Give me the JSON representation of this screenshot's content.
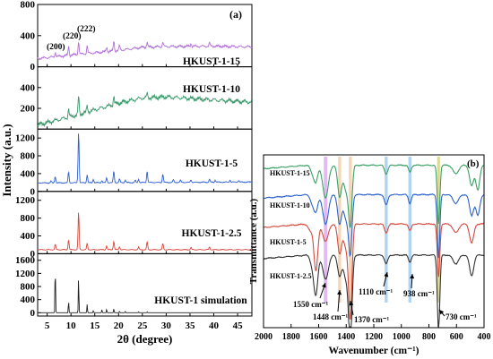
{
  "colors": {
    "hk15": "#b173d6",
    "hk10": "#3a9a6b",
    "hk5": "#2f5fd0",
    "hk25": "#d7473c",
    "sim": "#222222",
    "ft15": "#3aa063",
    "ft10": "#2c63c9",
    "ft5": "#d24a3e",
    "ft25": "#333333",
    "band_violet": "#d9a8f0",
    "band_orange": "#f3caa0",
    "band_blue": "#9cc9ef",
    "band_olive": "#d3d07a"
  },
  "chart_data": [
    {
      "type": "line",
      "panel_label": "(a)",
      "xlabel": "2θ (degree)",
      "ylabel": "Intensity (a.u.)",
      "xlim": [
        3,
        48
      ],
      "xticks": [
        5,
        10,
        15,
        20,
        25,
        30,
        35,
        40,
        45
      ],
      "peak_labels": [
        "(200)",
        "(220)",
        "(222)"
      ],
      "subplots": [
        {
          "name": "HKUST-1-15",
          "ylim": [
            0,
            800
          ],
          "yticks": [
            0,
            400,
            800
          ],
          "baseline": [
            [
              3,
              105
            ],
            [
              10,
              150
            ],
            [
              20,
              210
            ],
            [
              25,
              250
            ],
            [
              30,
              260
            ],
            [
              40,
              265
            ],
            [
              48,
              255
            ]
          ],
          "peaks": [
            [
              6.7,
              60
            ],
            [
              9.5,
              120
            ],
            [
              11.6,
              170
            ],
            [
              13.4,
              100
            ],
            [
              17.5,
              60
            ],
            [
              19.0,
              130
            ],
            [
              20.2,
              60
            ],
            [
              26.0,
              70
            ],
            [
              29.3,
              60
            ],
            [
              35.2,
              40
            ],
            [
              39.1,
              40
            ]
          ]
        },
        {
          "name": "HKUST-1-10",
          "ylim": [
            0,
            600
          ],
          "yticks": [
            200,
            400
          ],
          "baseline": [
            [
              3,
              40
            ],
            [
              10,
              120
            ],
            [
              20,
              250
            ],
            [
              25,
              300
            ],
            [
              30,
              310
            ],
            [
              40,
              280
            ],
            [
              48,
              260
            ]
          ],
          "peaks": [
            [
              9.5,
              80
            ],
            [
              11.6,
              180
            ],
            [
              13.4,
              60
            ],
            [
              19.0,
              80
            ],
            [
              26.0,
              40
            ]
          ]
        },
        {
          "name": "HKUST-1-5",
          "ylim": [
            0,
            1400
          ],
          "yticks": [
            0,
            400,
            800,
            1200
          ],
          "baseline": [
            [
              3,
              190
            ],
            [
              48,
              210
            ]
          ],
          "peaks": [
            [
              5.8,
              40
            ],
            [
              6.7,
              150
            ],
            [
              9.5,
              250
            ],
            [
              11.6,
              1150
            ],
            [
              13.4,
              180
            ],
            [
              14.7,
              80
            ],
            [
              16.5,
              50
            ],
            [
              17.5,
              110
            ],
            [
              19.0,
              260
            ],
            [
              20.2,
              80
            ],
            [
              21.4,
              60
            ],
            [
              23.5,
              50
            ],
            [
              24.2,
              80
            ],
            [
              26.0,
              260
            ],
            [
              29.3,
              190
            ],
            [
              31.5,
              60
            ],
            [
              33.0,
              50
            ],
            [
              35.2,
              60
            ],
            [
              39.1,
              70
            ],
            [
              40.3,
              50
            ],
            [
              43.4,
              50
            ],
            [
              45.2,
              40
            ]
          ]
        },
        {
          "name": "HKUST-1-2.5",
          "ylim": [
            0,
            1400
          ],
          "yticks": [
            0,
            400,
            800,
            1200
          ],
          "baseline": [
            [
              3,
              90
            ],
            [
              48,
              90
            ]
          ],
          "peaks": [
            [
              6.7,
              120
            ],
            [
              9.5,
              230
            ],
            [
              11.6,
              850
            ],
            [
              13.4,
              140
            ],
            [
              17.5,
              90
            ],
            [
              19.0,
              190
            ],
            [
              20.2,
              70
            ],
            [
              24.2,
              60
            ],
            [
              26.0,
              180
            ],
            [
              29.3,
              140
            ],
            [
              35.2,
              50
            ],
            [
              39.1,
              60
            ]
          ]
        },
        {
          "name": "HKUST-1 simulation",
          "ylim": [
            -100,
            1800
          ],
          "yticks": [
            0,
            400,
            800,
            1200,
            1600
          ],
          "baseline": [
            [
              3,
              0
            ],
            [
              48,
              0
            ]
          ],
          "peaks": [
            [
              6.7,
              1470
            ],
            [
              9.5,
              360
            ],
            [
              11.6,
              1100
            ],
            [
              13.4,
              250
            ],
            [
              14.7,
              60
            ],
            [
              16.5,
              90
            ],
            [
              17.5,
              110
            ],
            [
              19.0,
              130
            ],
            [
              20.2,
              50
            ],
            [
              21.4,
              40
            ],
            [
              24.2,
              30
            ],
            [
              26.0,
              30
            ]
          ]
        }
      ]
    },
    {
      "type": "line",
      "panel_label": "(b)",
      "xlabel": "Wavenumber (cm⁻¹)",
      "ylabel": "Transmittance (a.u.)",
      "xlim": [
        2000,
        400
      ],
      "xticks": [
        2000,
        1800,
        1600,
        1400,
        1200,
        1000,
        800,
        600,
        400
      ],
      "series": [
        {
          "name": "HKUST-1-15",
          "level": 0.94,
          "dips": [
            [
              1645,
              0.04,
              15
            ],
            [
              1620,
              0.09,
              14
            ],
            [
              1550,
              0.19,
              20
            ],
            [
              1448,
              0.18,
              14
            ],
            [
              1400,
              0.15,
              18
            ],
            [
              1370,
              0.32,
              12
            ],
            [
              1110,
              0.05,
              12
            ],
            [
              938,
              0.04,
              10
            ],
            [
              730,
              0.34,
              9
            ],
            [
              605,
              0.05,
              20
            ],
            [
              490,
              0.12,
              15
            ],
            [
              445,
              0.14,
              14
            ]
          ]
        },
        {
          "name": "HKUST-1-10",
          "level": 0.77,
          "dips": [
            [
              1645,
              0.05,
              15
            ],
            [
              1620,
              0.09,
              14
            ],
            [
              1550,
              0.17,
              20
            ],
            [
              1448,
              0.17,
              14
            ],
            [
              1400,
              0.14,
              18
            ],
            [
              1370,
              0.32,
              12
            ],
            [
              1110,
              0.06,
              12
            ],
            [
              938,
              0.05,
              10
            ],
            [
              730,
              0.37,
              9
            ],
            [
              605,
              0.05,
              20
            ],
            [
              490,
              0.12,
              15
            ],
            [
              445,
              0.12,
              14
            ]
          ]
        },
        {
          "name": "HKUST-1-5",
          "level": 0.6,
          "dips": [
            [
              1660,
              0.04,
              15
            ],
            [
              1620,
              0.27,
              14
            ],
            [
              1550,
              0.1,
              20
            ],
            [
              1448,
              0.17,
              14
            ],
            [
              1400,
              0.14,
              18
            ],
            [
              1370,
              0.52,
              12
            ],
            [
              1110,
              0.05,
              12
            ],
            [
              938,
              0.04,
              10
            ],
            [
              730,
              0.31,
              9
            ],
            [
              605,
              0.05,
              20
            ],
            [
              490,
              0.11,
              15
            ]
          ]
        },
        {
          "name": "HKUST-1-2.5",
          "level": 0.42,
          "dips": [
            [
              1645,
              0.06,
              15
            ],
            [
              1620,
              0.22,
              14
            ],
            [
              1550,
              0.14,
              20
            ],
            [
              1448,
              0.12,
              14
            ],
            [
              1400,
              0.14,
              18
            ],
            [
              1370,
              0.5,
              12
            ],
            [
              1110,
              0.05,
              12
            ],
            [
              938,
              0.04,
              10
            ],
            [
              730,
              0.44,
              9
            ],
            [
              605,
              0.05,
              20
            ],
            [
              490,
              0.12,
              15
            ]
          ]
        }
      ],
      "bands": [
        {
          "center": 1550,
          "width": 25,
          "color_key": "band_violet"
        },
        {
          "center": 1448,
          "width": 22,
          "color_key": "band_orange"
        },
        {
          "center": 1370,
          "width": 22,
          "color_key": "band_orange"
        },
        {
          "center": 1110,
          "width": 22,
          "color_key": "band_blue"
        },
        {
          "center": 938,
          "width": 22,
          "color_key": "band_blue"
        },
        {
          "center": 730,
          "width": 20,
          "color_key": "band_olive"
        }
      ],
      "annotations": [
        "1550 cm⁻¹",
        "1448 cm⁻¹",
        "1370 cm⁻¹",
        "1110 cm⁻¹",
        "938 cm⁻¹",
        "730 cm⁻¹"
      ]
    }
  ]
}
